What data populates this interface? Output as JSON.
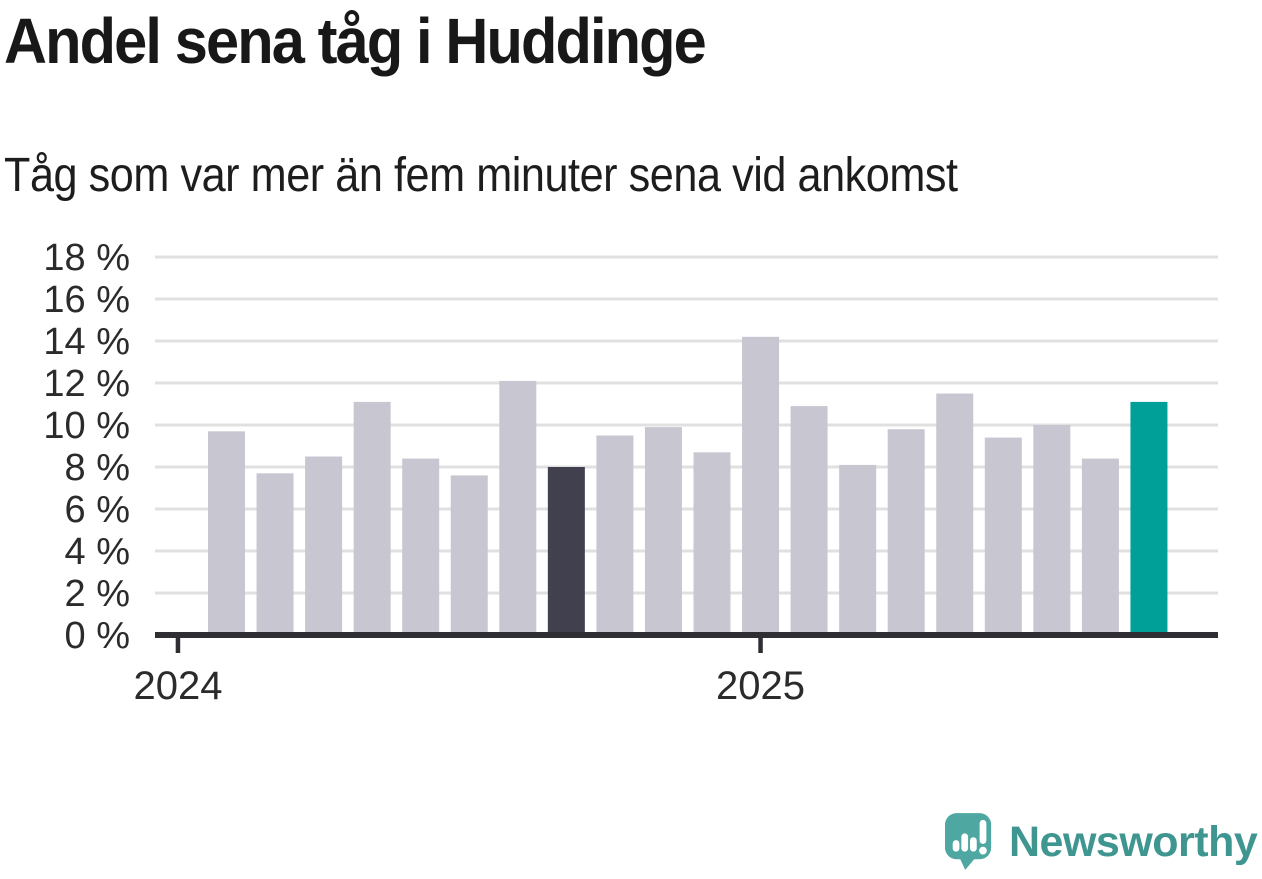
{
  "header": {
    "title": "Andel sena tåg i Huddinge",
    "subtitle": "Tåg som var mer än fem minuter sena vid ankomst"
  },
  "chart_data": {
    "type": "bar",
    "title": "Andel sena tåg i Huddinge",
    "subtitle": "Tåg som var mer än fem minuter sena vid ankomst",
    "unit": "%",
    "x": [
      "2024-02",
      "2024-03",
      "2024-04",
      "2024-05",
      "2024-06",
      "2024-07",
      "2024-08",
      "2024-09",
      "2024-10",
      "2024-11",
      "2024-12",
      "2025-01",
      "2025-02",
      "2025-03",
      "2025-04",
      "2025-05",
      "2025-06",
      "2025-07",
      "2025-08",
      "2025-09"
    ],
    "values": [
      9.7,
      7.7,
      8.5,
      11.1,
      8.4,
      7.6,
      12.1,
      8.0,
      9.5,
      9.9,
      8.7,
      14.2,
      10.9,
      8.1,
      9.8,
      11.5,
      9.4,
      10.0,
      8.4,
      11.1
    ],
    "ylim": [
      0,
      18
    ],
    "grid": true,
    "y_ticks": [
      {
        "label": "18 %",
        "value": 18
      },
      {
        "label": "16 %",
        "value": 16
      },
      {
        "label": "14 %",
        "value": 14
      },
      {
        "label": "12 %",
        "value": 12
      },
      {
        "label": "10 %",
        "value": 10
      },
      {
        "label": "8 %",
        "value": 8
      },
      {
        "label": "6 %",
        "value": 6
      },
      {
        "label": "4 %",
        "value": 4
      },
      {
        "label": "2 %",
        "value": 2
      },
      {
        "label": "0 %",
        "value": 0
      }
    ],
    "x_ticks": [
      {
        "label": "2024",
        "month": "2024-01"
      },
      {
        "label": "2025",
        "month": "2025-01"
      }
    ],
    "bar_default_color": "#c8c7d1",
    "highlights": [
      {
        "index": 7,
        "color": "#41404e"
      },
      {
        "index": 19,
        "color": "#00a099"
      }
    ]
  },
  "footer": {
    "brand": "Newsworthy"
  },
  "colors": {
    "accent_teal": "#00a099",
    "highlight_dark": "#41404e",
    "bar_gray": "#c8c7d1",
    "axis": "#2f2e33",
    "gridline": "#e0e0e0",
    "axis_label": "#2b2b2b",
    "logo_teal": "#4fa7a1",
    "wordmark_teal": "#3f958f"
  }
}
